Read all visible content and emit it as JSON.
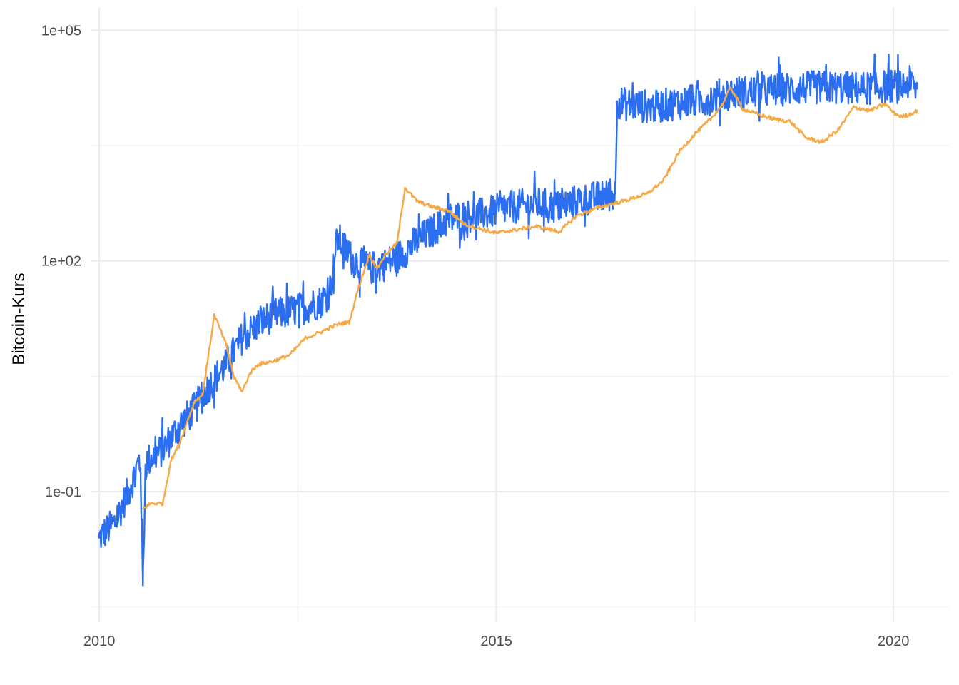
{
  "chart_data": {
    "type": "line",
    "title": "",
    "xlabel": "",
    "ylabel": "Bitcoin-Kurs",
    "y_scale": "log10",
    "xlim": [
      2009.9,
      2020.7
    ],
    "ylim": [
      0.002,
      200000
    ],
    "x_ticks": [
      2010,
      2015,
      2020
    ],
    "x_tick_labels": [
      "2010",
      "2015",
      "2020"
    ],
    "y_ticks": [
      0.1,
      100,
      100000
    ],
    "y_tick_labels": [
      "1e-01",
      "1e+02",
      "1e+05"
    ],
    "grid": true,
    "legend": "none",
    "series": [
      {
        "color": "#2b6ff0",
        "volatility": "high",
        "x": [
          2010.0,
          2010.2,
          2010.4,
          2010.5,
          2010.52,
          2010.55,
          2010.58,
          2010.6,
          2010.8,
          2011.0,
          2011.2,
          2011.4,
          2011.6,
          2011.8,
          2012.0,
          2012.2,
          2012.4,
          2012.6,
          2012.8,
          2012.85,
          2012.9,
          2013.0,
          2013.2,
          2013.4,
          2013.6,
          2013.8,
          2014.0,
          2014.2,
          2014.4,
          2014.6,
          2014.8,
          2015.0,
          2015.2,
          2015.5,
          2015.8,
          2016.0,
          2016.2,
          2016.4,
          2016.5,
          2016.52,
          2016.6,
          2016.8,
          2017.0,
          2017.2,
          2017.5,
          2017.7,
          2017.8,
          2017.9,
          2018.0,
          2018.3,
          2018.6,
          2018.8,
          2019.0,
          2019.3,
          2019.6,
          2019.9,
          2020.0,
          2020.1,
          2020.2,
          2020.3
        ],
        "y": [
          0.025,
          0.04,
          0.12,
          0.25,
          0.2,
          0.006,
          0.2,
          0.25,
          0.35,
          0.7,
          1.2,
          2.5,
          4.5,
          10,
          15,
          20,
          22,
          25,
          30,
          35,
          40,
          200,
          100,
          80,
          90,
          120,
          180,
          250,
          350,
          380,
          400,
          450,
          500,
          550,
          500,
          600,
          650,
          700,
          750,
          12000,
          11000,
          10500,
          10000,
          11000,
          12000,
          13000,
          14000,
          15000,
          15500,
          16000,
          17000,
          17500,
          18000,
          18000,
          17500,
          18500,
          19000,
          18000,
          21000,
          17000
        ]
      },
      {
        "color": "#f5a844",
        "volatility": "low",
        "x": [
          2010.55,
          2010.65,
          2010.8,
          2010.9,
          2011.0,
          2011.2,
          2011.3,
          2011.45,
          2011.6,
          2011.7,
          2011.8,
          2011.9,
          2012.0,
          2012.2,
          2012.4,
          2012.6,
          2012.8,
          2013.0,
          2013.15,
          2013.25,
          2013.4,
          2013.5,
          2013.6,
          2013.75,
          2013.85,
          2014.0,
          2014.2,
          2014.4,
          2014.6,
          2014.8,
          2015.0,
          2015.2,
          2015.5,
          2015.8,
          2016.0,
          2016.3,
          2016.6,
          2016.9,
          2017.1,
          2017.3,
          2017.5,
          2017.7,
          2017.85,
          2017.95,
          2018.1,
          2018.3,
          2018.5,
          2018.7,
          2018.9,
          2019.1,
          2019.3,
          2019.5,
          2019.7,
          2019.9,
          2020.0,
          2020.1,
          2020.2,
          2020.3
        ],
        "y": [
          0.06,
          0.07,
          0.07,
          0.25,
          0.4,
          1.5,
          1.8,
          20,
          8,
          3,
          2,
          3.5,
          4.5,
          5,
          6,
          10,
          12,
          15,
          16,
          40,
          120,
          80,
          120,
          170,
          900,
          600,
          500,
          450,
          300,
          260,
          230,
          250,
          280,
          240,
          380,
          500,
          600,
          750,
          1100,
          2600,
          4500,
          7000,
          11000,
          18000,
          9500,
          8000,
          7000,
          6500,
          4000,
          3500,
          5000,
          10000,
          9000,
          11000,
          8500,
          7500,
          8000,
          9000
        ]
      }
    ]
  }
}
